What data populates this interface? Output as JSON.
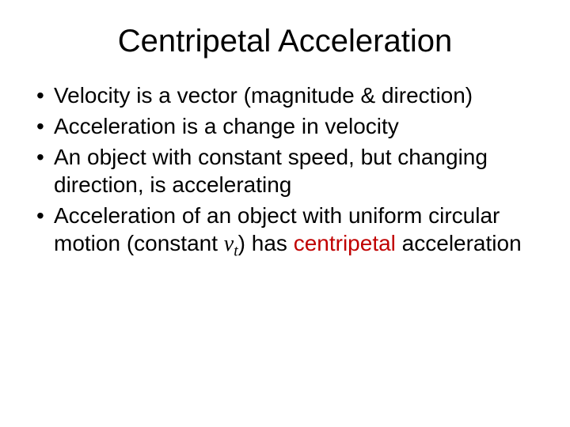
{
  "slide": {
    "background_color": "#ffffff",
    "title": {
      "text": "Centripetal Acceleration",
      "fontsize": 40,
      "color": "#000000",
      "font_family": "Arial"
    },
    "bullets": {
      "fontsize": 28,
      "color": "#000000",
      "font_family": "Arial",
      "items": [
        {
          "text": "Velocity is a vector (magnitude & direction)"
        },
        {
          "text": "Acceleration is a change in velocity"
        },
        {
          "text": "An object with constant speed, but changing direction, is accelerating"
        },
        {
          "prefix": "Acceleration of an object with uniform circular motion (constant ",
          "vt_base": "v",
          "vt_sub": "t",
          "mid": ") has ",
          "emph": "centripetal",
          "suffix": " acceleration"
        }
      ]
    },
    "accent_color": "#c00000",
    "vt_font_family": "Times New Roman"
  }
}
